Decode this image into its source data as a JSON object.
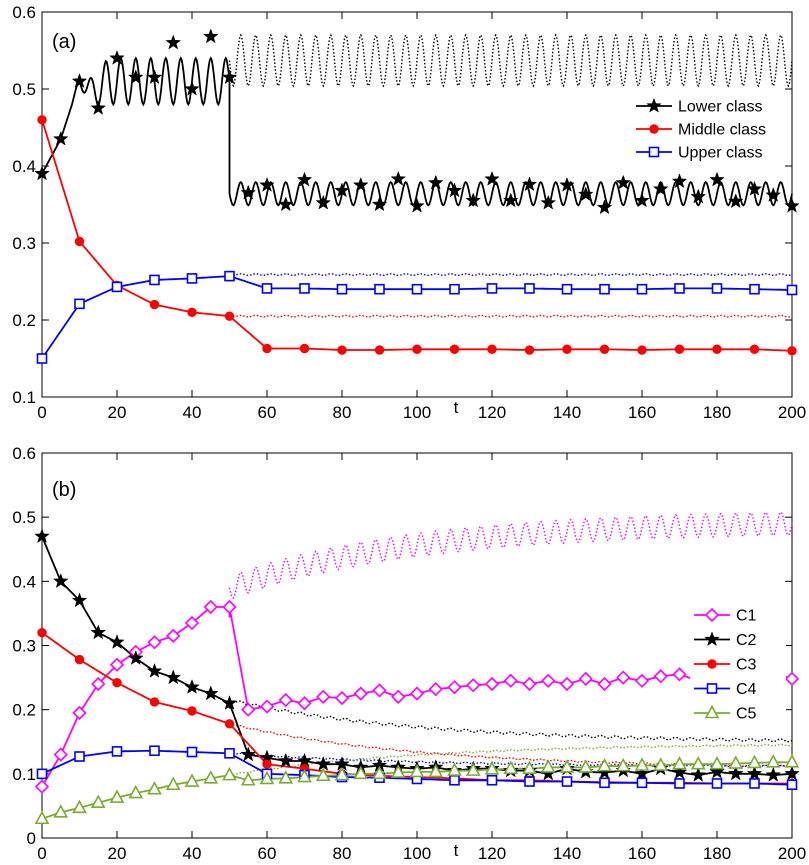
{
  "chart_data": [
    {
      "type": "line",
      "panel_label": "(a)",
      "xlabel": "t",
      "ylabel": "",
      "xlim": [
        0,
        200
      ],
      "ylim": [
        0.1,
        0.6
      ],
      "xticks": [
        "0",
        "20",
        "40",
        "60",
        "80",
        "100",
        "120",
        "140",
        "160",
        "180",
        "200"
      ],
      "yticks": [
        "0.1",
        "0.2",
        "0.3",
        "0.4",
        "0.5",
        "0.6"
      ],
      "legend_position": "upper-right",
      "series": [
        {
          "name": "Lower class",
          "color": "#000000",
          "marker": "star",
          "markers": {
            "x": [
              0,
              5,
              10,
              15,
              20,
              25,
              30,
              35,
              40,
              45,
              50,
              55,
              60,
              65,
              70,
              75,
              80,
              85,
              90,
              95,
              100,
              105,
              110,
              115,
              120,
              125,
              130,
              135,
              140,
              145,
              150,
              155,
              160,
              165,
              170,
              175,
              180,
              185,
              190,
              195,
              200
            ],
            "y": [
              0.39,
              0.435,
              0.51,
              0.475,
              0.54,
              0.515,
              0.515,
              0.56,
              0.5,
              0.568,
              0.515,
              0.365,
              0.375,
              0.35,
              0.382,
              0.352,
              0.368,
              0.375,
              0.35,
              0.383,
              0.348,
              0.378,
              0.368,
              0.355,
              0.383,
              0.355,
              0.376,
              0.352,
              0.375,
              0.363,
              0.346,
              0.378,
              0.355,
              0.37,
              0.38,
              0.36,
              0.382,
              0.354,
              0.37,
              0.362,
              0.348
            ]
          },
          "switch_t": 50,
          "pre_switch_mean": 0.51,
          "pre_switch_amplitude": 0.03,
          "post_switch_mean": 0.364,
          "post_switch_amplitude": 0.015,
          "dotted_continuation": {
            "mean": 0.537,
            "amplitude": 0.033
          }
        },
        {
          "name": "Middle class",
          "color": "#ff0000",
          "marker": "circle",
          "markers": {
            "x": [
              0,
              10,
              20,
              30,
              40,
              50,
              60,
              70,
              80,
              90,
              100,
              110,
              120,
              130,
              140,
              150,
              160,
              170,
              180,
              190,
              200
            ],
            "y": [
              0.46,
              0.302,
              0.245,
              0.22,
              0.21,
              0.205,
              0.163,
              0.163,
              0.161,
              0.161,
              0.162,
              0.162,
              0.162,
              0.161,
              0.162,
              0.162,
              0.161,
              0.162,
              0.162,
              0.162,
              0.16
            ]
          },
          "switch_t": 50,
          "dotted_continuation": {
            "mean": 0.205,
            "amplitude": 0.001
          }
        },
        {
          "name": "Upper class",
          "color": "#0000ff",
          "marker": "square",
          "markers": {
            "x": [
              0,
              10,
              20,
              30,
              40,
              50,
              60,
              70,
              80,
              90,
              100,
              110,
              120,
              130,
              140,
              150,
              160,
              170,
              180,
              190,
              200
            ],
            "y": [
              0.15,
              0.221,
              0.243,
              0.252,
              0.254,
              0.257,
              0.241,
              0.241,
              0.24,
              0.24,
              0.24,
              0.24,
              0.241,
              0.241,
              0.24,
              0.24,
              0.24,
              0.241,
              0.241,
              0.24,
              0.239
            ]
          },
          "switch_t": 50,
          "dotted_continuation": {
            "mean": 0.259,
            "amplitude": 0.001
          }
        }
      ]
    },
    {
      "type": "line",
      "panel_label": "(b)",
      "xlabel": "t",
      "ylabel": "",
      "xlim": [
        0,
        200
      ],
      "ylim": [
        0,
        0.6
      ],
      "xticks": [
        "0",
        "20",
        "40",
        "60",
        "80",
        "100",
        "120",
        "140",
        "160",
        "180",
        "200"
      ],
      "yticks": [
        "0",
        "0.1",
        "0.2",
        "0.3",
        "0.4",
        "0.5",
        "0.6"
      ],
      "legend_position": "right",
      "series": [
        {
          "name": "C1",
          "color": "#ff00ff",
          "marker": "diamond",
          "markers": {
            "x": [
              0,
              5,
              10,
              15,
              20,
              25,
              30,
              35,
              40,
              45,
              50,
              55,
              60,
              65,
              70,
              75,
              80,
              85,
              90,
              95,
              100,
              105,
              110,
              115,
              120,
              125,
              130,
              135,
              140,
              145,
              150,
              155,
              160,
              165,
              170,
              175,
              180,
              185,
              190,
              195,
              200
            ],
            "y": [
              0.08,
              0.13,
              0.195,
              0.24,
              0.27,
              0.29,
              0.305,
              0.315,
              0.335,
              0.36,
              0.36,
              0.2,
              0.205,
              0.215,
              0.21,
              0.22,
              0.218,
              0.225,
              0.23,
              0.22,
              0.225,
              0.232,
              0.235,
              0.238,
              0.24,
              0.245,
              0.24,
              0.245,
              0.24,
              0.248,
              0.24,
              0.25,
              0.245,
              0.252,
              0.255,
              0.245,
              0.26,
              0.248,
              0.255,
              0.258,
              0.248
            ]
          },
          "switch_t": 50,
          "dotted_continuation": {
            "start": 0.39,
            "end": 0.49,
            "amplitude": 0.018
          }
        },
        {
          "name": "C2",
          "color": "#000000",
          "marker": "star",
          "markers": {
            "x": [
              0,
              5,
              10,
              15,
              20,
              25,
              30,
              35,
              40,
              45,
              50,
              55,
              60,
              65,
              70,
              75,
              80,
              85,
              90,
              95,
              100,
              105,
              110,
              115,
              120,
              125,
              130,
              135,
              140,
              145,
              150,
              155,
              160,
              165,
              170,
              175,
              180,
              185,
              190,
              195,
              200
            ],
            "y": [
              0.47,
              0.4,
              0.37,
              0.32,
              0.305,
              0.28,
              0.26,
              0.25,
              0.235,
              0.225,
              0.21,
              0.13,
              0.125,
              0.12,
              0.12,
              0.115,
              0.115,
              0.11,
              0.113,
              0.11,
              0.108,
              0.11,
              0.105,
              0.108,
              0.108,
              0.105,
              0.105,
              0.1,
              0.108,
              0.103,
              0.102,
              0.105,
              0.1,
              0.108,
              0.102,
              0.098,
              0.103,
              0.1,
              0.1,
              0.098,
              0.1
            ]
          },
          "switch_t": 50,
          "dotted_continuation": {
            "start": 0.215,
            "end": 0.152,
            "amplitude": 0.002
          }
        },
        {
          "name": "C3",
          "color": "#ff0000",
          "marker": "circle",
          "markers": {
            "x": [
              0,
              10,
              20,
              30,
              40,
              50,
              60,
              70,
              80,
              90,
              100,
              110,
              120,
              130,
              140,
              150,
              160,
              170,
              180,
              190,
              200
            ],
            "y": [
              0.32,
              0.278,
              0.242,
              0.212,
              0.198,
              0.178,
              0.115,
              0.108,
              0.1,
              0.097,
              0.095,
              0.093,
              0.09,
              0.09,
              0.088,
              0.087,
              0.086,
              0.086,
              0.085,
              0.085,
              0.085
            ]
          },
          "switch_t": 50,
          "dotted_continuation": {
            "start": 0.178,
            "end": 0.112,
            "amplitude": 0.001
          }
        },
        {
          "name": "C4",
          "color": "#0000ff",
          "marker": "square",
          "markers": {
            "x": [
              0,
              10,
              20,
              30,
              40,
              50,
              60,
              70,
              80,
              90,
              100,
              110,
              120,
              130,
              140,
              150,
              160,
              170,
              180,
              190,
              200
            ],
            "y": [
              0.1,
              0.127,
              0.135,
              0.136,
              0.134,
              0.132,
              0.1,
              0.098,
              0.095,
              0.094,
              0.092,
              0.09,
              0.09,
              0.088,
              0.088,
              0.086,
              0.086,
              0.085,
              0.085,
              0.085,
              0.083
            ]
          },
          "switch_t": 50,
          "dotted_continuation": {
            "start": 0.132,
            "end": 0.112,
            "amplitude": 0.001
          }
        },
        {
          "name": "C5",
          "color": "#77ac30",
          "marker": "triangle",
          "markers": {
            "x": [
              0,
              5,
              10,
              15,
              20,
              25,
              30,
              35,
              40,
              45,
              50,
              55,
              60,
              65,
              70,
              75,
              80,
              85,
              90,
              95,
              100,
              105,
              110,
              115,
              120,
              125,
              130,
              135,
              140,
              145,
              150,
              155,
              160,
              165,
              170,
              175,
              180,
              185,
              190,
              195,
              200
            ],
            "y": [
              0.03,
              0.04,
              0.047,
              0.055,
              0.063,
              0.07,
              0.076,
              0.083,
              0.088,
              0.093,
              0.098,
              0.09,
              0.092,
              0.093,
              0.095,
              0.097,
              0.098,
              0.1,
              0.1,
              0.102,
              0.103,
              0.103,
              0.105,
              0.105,
              0.107,
              0.108,
              0.108,
              0.11,
              0.11,
              0.11,
              0.112,
              0.112,
              0.113,
              0.113,
              0.115,
              0.115,
              0.115,
              0.116,
              0.117,
              0.118,
              0.118
            ]
          },
          "switch_t": 50,
          "dotted_continuation": {
            "start": 0.098,
            "end": 0.145,
            "amplitude": 0.001
          }
        }
      ]
    }
  ]
}
